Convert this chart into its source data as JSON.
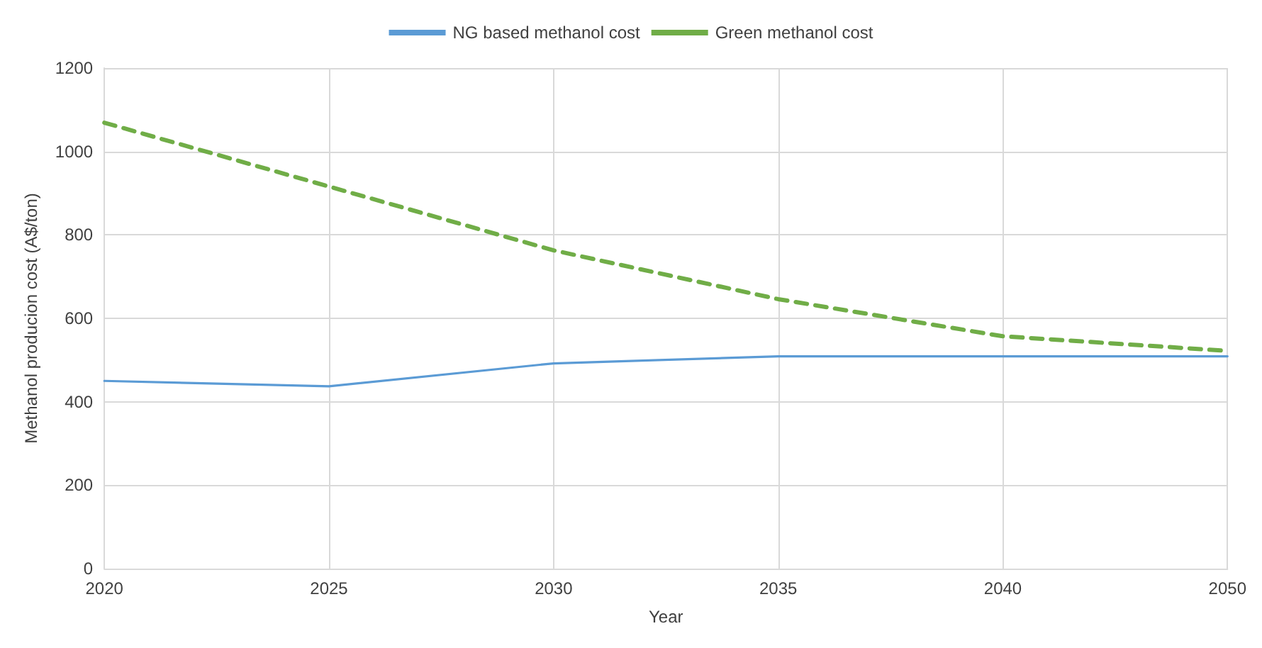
{
  "chart_data": {
    "type": "line",
    "xlabel": "Year",
    "ylabel": "Methanol producion cost (A$/ton)",
    "categories": [
      "2020",
      "2025",
      "2030",
      "2035",
      "2040",
      "2050"
    ],
    "series": [
      {
        "name": "NG based methanol cost",
        "color": "#5b9bd5",
        "line_style": "solid",
        "values": [
          450,
          437,
          492,
          509,
          509,
          509
        ]
      },
      {
        "name": "Green methanol cost",
        "color": "#70ad47",
        "line_style": "dashed",
        "values": [
          1069,
          916,
          763,
          646,
          557,
          522
        ]
      }
    ],
    "ylim": [
      0,
      1200
    ],
    "yticks": [
      0,
      200,
      400,
      600,
      800,
      1000,
      1200
    ],
    "grid": true,
    "legend": "top",
    "marker": "none"
  }
}
